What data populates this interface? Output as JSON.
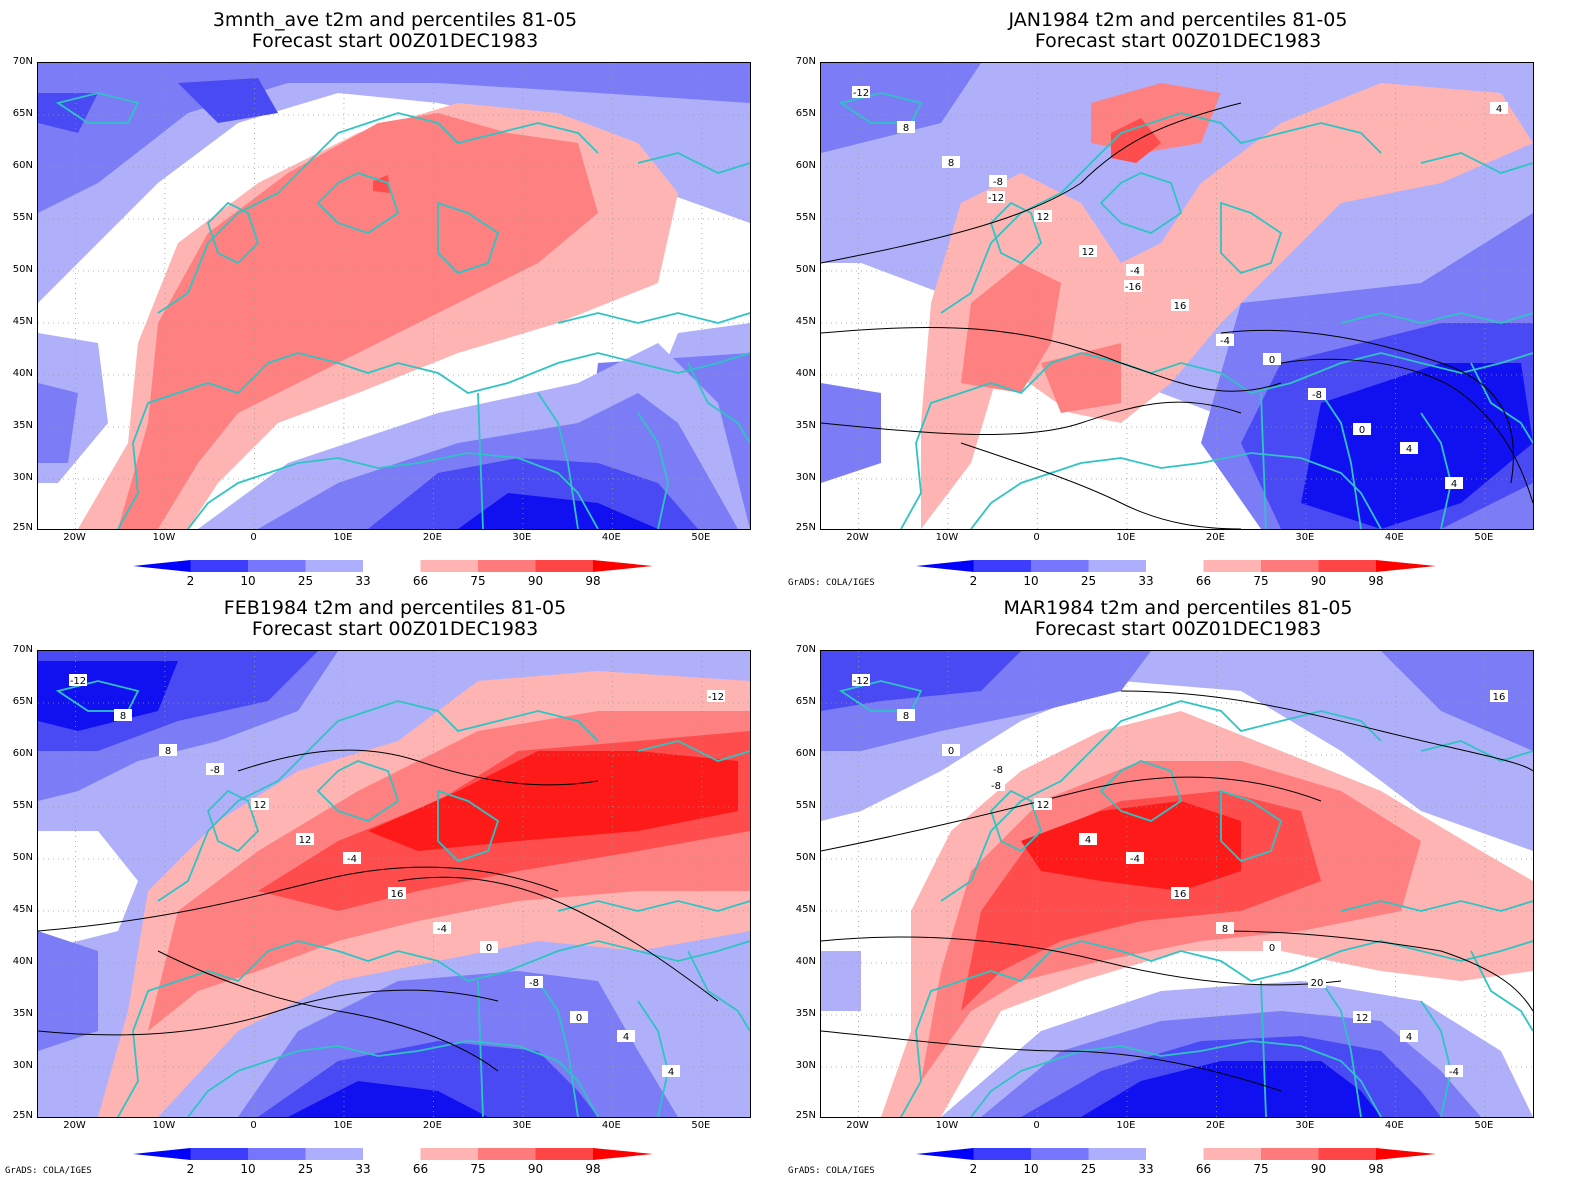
{
  "panels": [
    {
      "id": "p1",
      "title_line1": "3mnth_ave t2m and percentiles 81-05",
      "title_line2": "Forecast start 00Z01DEC1983",
      "contours": false
    },
    {
      "id": "p2",
      "title_line1": "JAN1984 t2m and percentiles 81-05",
      "title_line2": "Forecast start 00Z01DEC1983",
      "contours": true,
      "credit": "GrADS: COLA/IGES"
    },
    {
      "id": "p3",
      "title_line1": "FEB1984 t2m and percentiles 81-05",
      "title_line2": "Forecast start 00Z01DEC1983",
      "contours": true,
      "credit": "GrADS: COLA/IGES"
    },
    {
      "id": "p4",
      "title_line1": "MAR1984 t2m and percentiles 81-05",
      "title_line2": "Forecast start 00Z01DEC1983",
      "contours": true,
      "credit": "GrADS: COLA/IGES"
    }
  ],
  "lat_labels": [
    "70N",
    "65N",
    "60N",
    "55N",
    "50N",
    "45N",
    "40N",
    "35N",
    "30N",
    "25N"
  ],
  "lon_labels": [
    "20W",
    "10W",
    "0",
    "10E",
    "20E",
    "30E",
    "40E",
    "50E"
  ],
  "colorbar": {
    "labels": [
      "2",
      "10",
      "25",
      "33",
      "66",
      "75",
      "90",
      "98"
    ],
    "colors": [
      "#0000ff",
      "#3d3dff",
      "#7575ff",
      "#aeaeff",
      "#ffffff",
      "#ffb3b3",
      "#ff7a7a",
      "#ff4545",
      "#ff0000"
    ]
  },
  "colors": {
    "coast": "#2fc4c4",
    "blue_strong": "#1010f0",
    "blue_mid": "#4a4af5",
    "blue_light": "#7c7cf7",
    "blue_pale": "#b0b0fa",
    "red_pale": "#ffb4b4",
    "red_light": "#ff8080",
    "red_mid": "#ff4c4c",
    "red_strong": "#ff1a1a"
  },
  "contour_labels": {
    "p2": [
      "-12",
      "-8",
      "-4",
      "0",
      "4",
      "8",
      "12",
      "16",
      "-8",
      "4",
      "8",
      "12",
      "-4",
      "0",
      "4",
      "-12",
      "-16"
    ],
    "p3": [
      "-12",
      "-8",
      "-4",
      "0",
      "4",
      "8",
      "12",
      "16",
      "-8",
      "4",
      "8",
      "12",
      "-4",
      "0",
      "-12"
    ],
    "p4": [
      "-12",
      "-8",
      "-4",
      "0",
      "4",
      "8",
      "12",
      "16",
      "20",
      "-4",
      "0",
      "4",
      "8",
      "12",
      "16",
      "-8"
    ]
  }
}
